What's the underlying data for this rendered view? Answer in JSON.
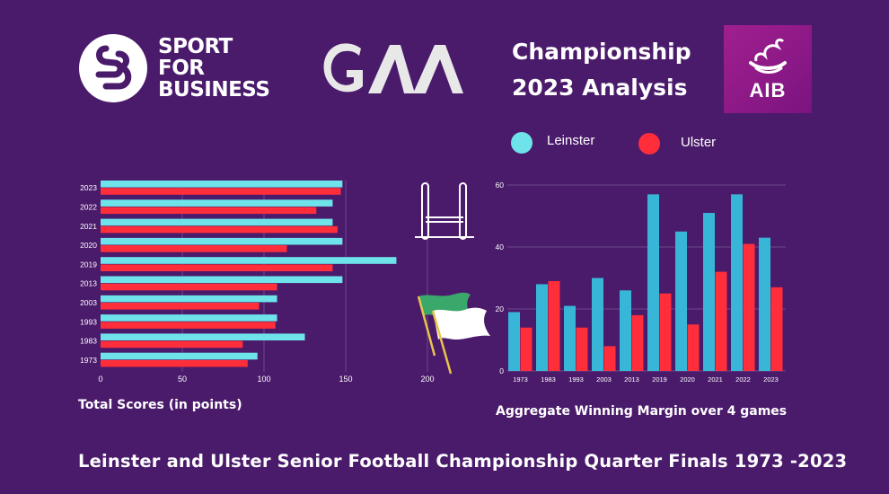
{
  "header": {
    "sport_logo_lines": [
      "SPORT",
      "FOR",
      "BUSINESS"
    ],
    "gaa_logo_text": "GAA",
    "title_lines": [
      "Championship",
      "2023 Analysis"
    ],
    "aib_logo_text": "AIB"
  },
  "legend": {
    "items": [
      {
        "label": "Leinster",
        "color": "#6ee3ea"
      },
      {
        "label": "Ulster",
        "color": "#ff2e3a"
      }
    ]
  },
  "colors": {
    "background": "#4a1a6b",
    "leinster_bar": "#6ee3ea",
    "ulster_bar": "#ff2e3a",
    "leinster_column": "#38b6d8",
    "ulster_column": "#ff2e3a",
    "gridline": "#6b4a8a"
  },
  "icons": {
    "goalposts": "goalposts-icon",
    "flag": "waving-flag-icon"
  },
  "chart_data": [
    {
      "type": "bar",
      "orientation": "horizontal",
      "title": "Total Scores (in points)",
      "categories": [
        "2023",
        "2022",
        "2021",
        "2020",
        "2019",
        "2013",
        "2003",
        "1993",
        "1983",
        "1973"
      ],
      "series": [
        {
          "name": "Leinster",
          "values": [
            148,
            142,
            142,
            148,
            181,
            148,
            108,
            108,
            125,
            96
          ]
        },
        {
          "name": "Ulster",
          "values": [
            147,
            132,
            145,
            114,
            142,
            108,
            97,
            107,
            87,
            90
          ]
        }
      ],
      "xlim": [
        0,
        200
      ],
      "xticks": [
        "0",
        "50",
        "100",
        "150",
        "200"
      ],
      "grid": "vertical"
    },
    {
      "type": "bar",
      "orientation": "vertical",
      "title": "Aggregate Winning Margin over 4 games",
      "categories": [
        "1973",
        "1983",
        "1993",
        "2003",
        "2013",
        "2019",
        "2020",
        "2021",
        "2022",
        "2023"
      ],
      "series": [
        {
          "name": "Leinster",
          "values": [
            19,
            28,
            21,
            30,
            26,
            57,
            45,
            51,
            57,
            43
          ]
        },
        {
          "name": "Ulster",
          "values": [
            14,
            29,
            14,
            8,
            18,
            25,
            15,
            32,
            41,
            27
          ]
        }
      ],
      "ylim": [
        0,
        60
      ],
      "yticks": [
        "0",
        "20",
        "40",
        "60"
      ],
      "grid": "horizontal"
    }
  ],
  "footer": {
    "text": "Leinster and Ulster Senior Football Championship Quarter Finals 1973 -2023"
  }
}
